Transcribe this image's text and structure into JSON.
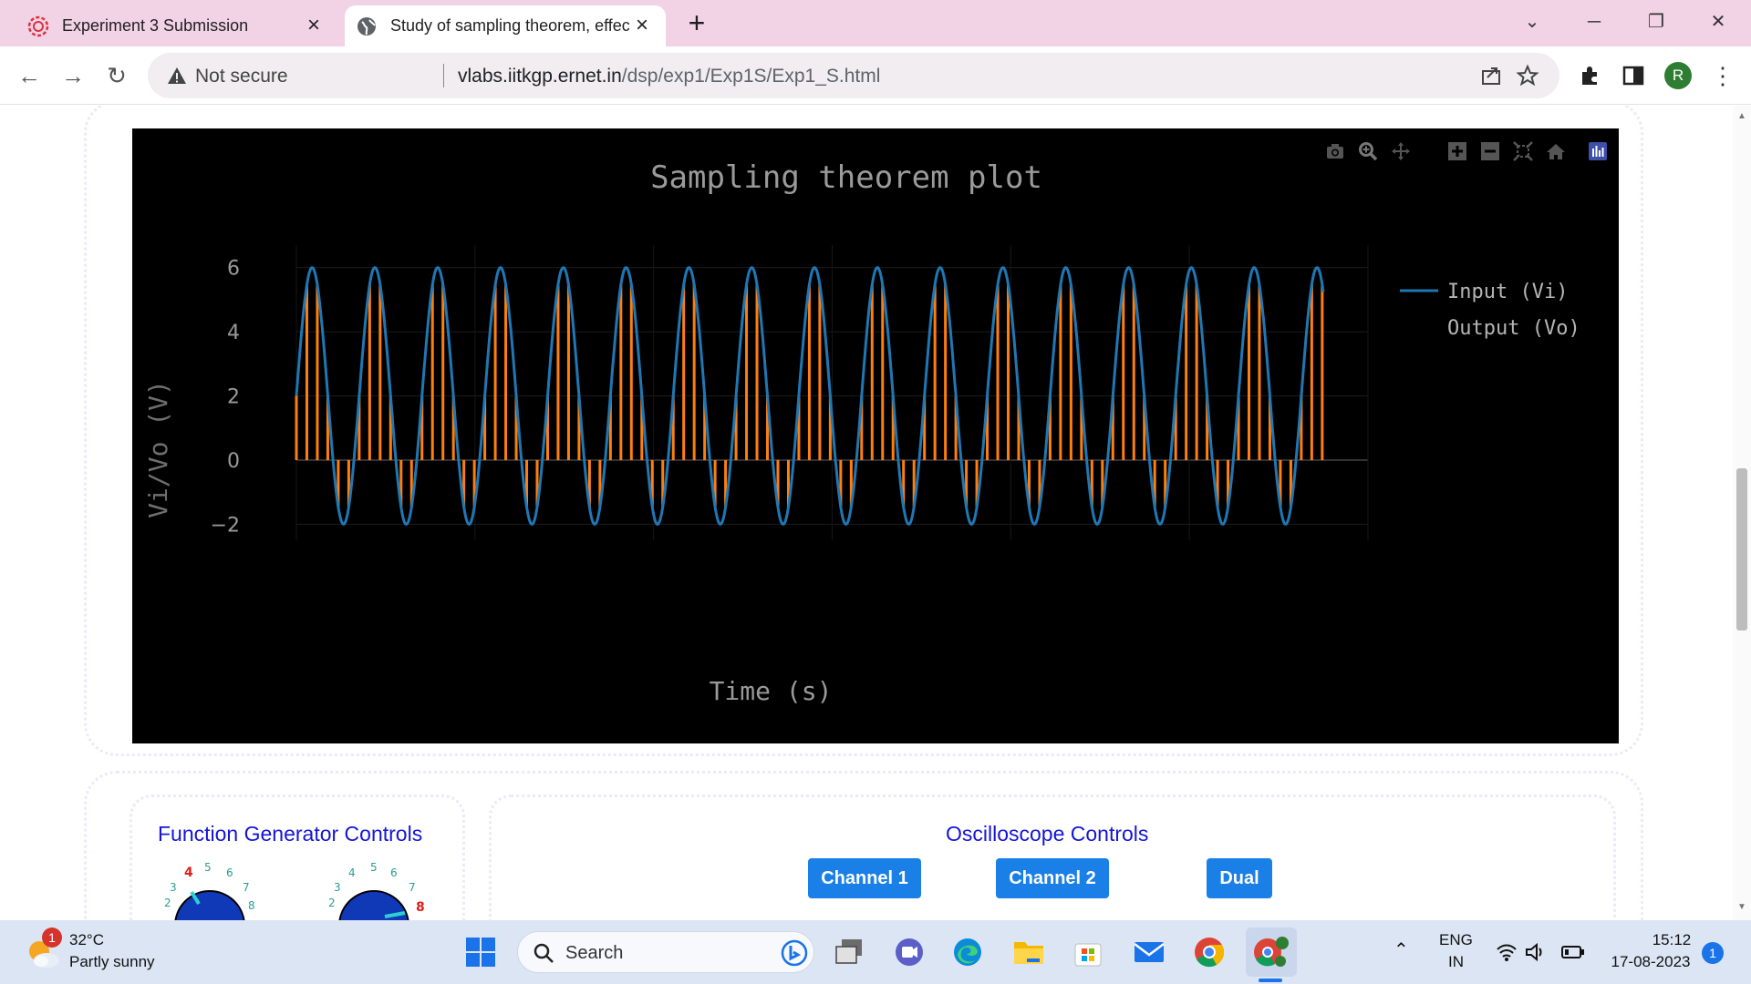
{
  "browser": {
    "tabs": [
      {
        "title": "Experiment 3 Submission",
        "active": false
      },
      {
        "title": "Study of sampling theorem, effec",
        "active": true
      }
    ],
    "security": "Not secure",
    "url_host": "vlabs.iitkgp.ernet.in",
    "url_path": "/dsp/exp1/Exp1S/Exp1_S.html",
    "avatar_letter": "R"
  },
  "chart_data": {
    "type": "line",
    "title": "Sampling theorem plot",
    "xlabel": "Time (s)",
    "ylabel": "Vi/Vo (V)",
    "ylim": [
      -2.5,
      6.7
    ],
    "yticks": [
      "6",
      "4",
      "2",
      "0",
      "−2"
    ],
    "grid": true,
    "legend_position": "top-right",
    "series": [
      {
        "name": "Input (Vi)",
        "kind": "sine",
        "offset": 2,
        "amplitude": 4,
        "cycles": 16.35,
        "phase_deg": 0,
        "color": "#1f77b4"
      },
      {
        "name": "Output (Vo)",
        "kind": "sampled-stems",
        "samples_per_cycle": 6,
        "color": "#ff7f0e"
      }
    ]
  },
  "function_generator": {
    "title": "Function Generator Controls",
    "dial_labels": [
      "2",
      "3",
      "4",
      "5",
      "6",
      "7",
      "8"
    ]
  },
  "oscilloscope": {
    "title": "Oscilloscope Controls",
    "buttons": [
      "Channel 1",
      "Channel 2",
      "Dual"
    ]
  },
  "taskbar": {
    "weather_temp": "32°C",
    "weather_desc": "Partly sunny",
    "weather_badge": "1",
    "search_label": "Search",
    "lang1": "ENG",
    "lang2": "IN",
    "time": "15:12",
    "date": "17-08-2023",
    "notification_count": "1"
  },
  "colors": {
    "accent": "#1a7fe6",
    "title_blue": "#1515d6",
    "tab_bg": "#f2d3e6"
  }
}
